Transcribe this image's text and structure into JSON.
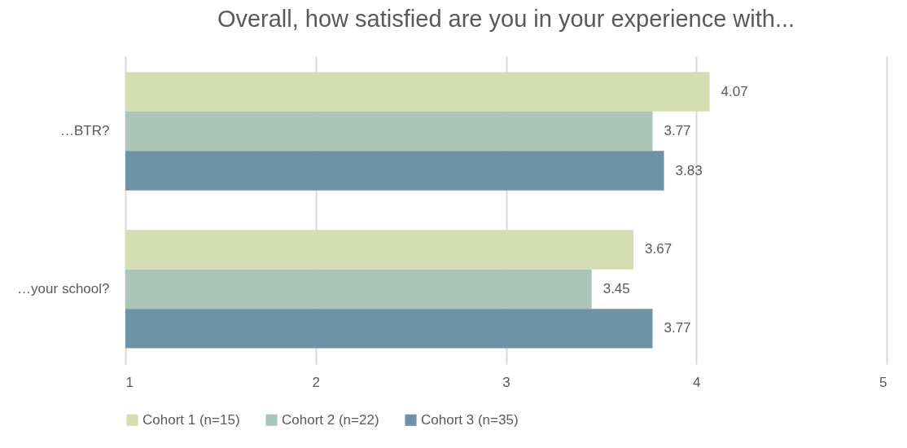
{
  "chart_data": {
    "type": "bar",
    "orientation": "horizontal",
    "title": "Overall, how satisfied are you in your experience with...",
    "categories": [
      "…BTR?",
      "…your school?"
    ],
    "series": [
      {
        "name": "Cohort 1 (n=15)",
        "color": "#d5deb2",
        "values": [
          4.07,
          3.67
        ]
      },
      {
        "name": "Cohort 2 (n=22)",
        "color": "#abc6b8",
        "values": [
          3.77,
          3.45
        ]
      },
      {
        "name": "Cohort 3 (n=35)",
        "color": "#6f92a6",
        "values": [
          3.83,
          3.77
        ]
      }
    ],
    "xlim": [
      1,
      5
    ],
    "xticks": [
      1,
      2,
      3,
      4,
      5
    ],
    "grid": "x",
    "legend": "bottom",
    "data_labels": true
  }
}
